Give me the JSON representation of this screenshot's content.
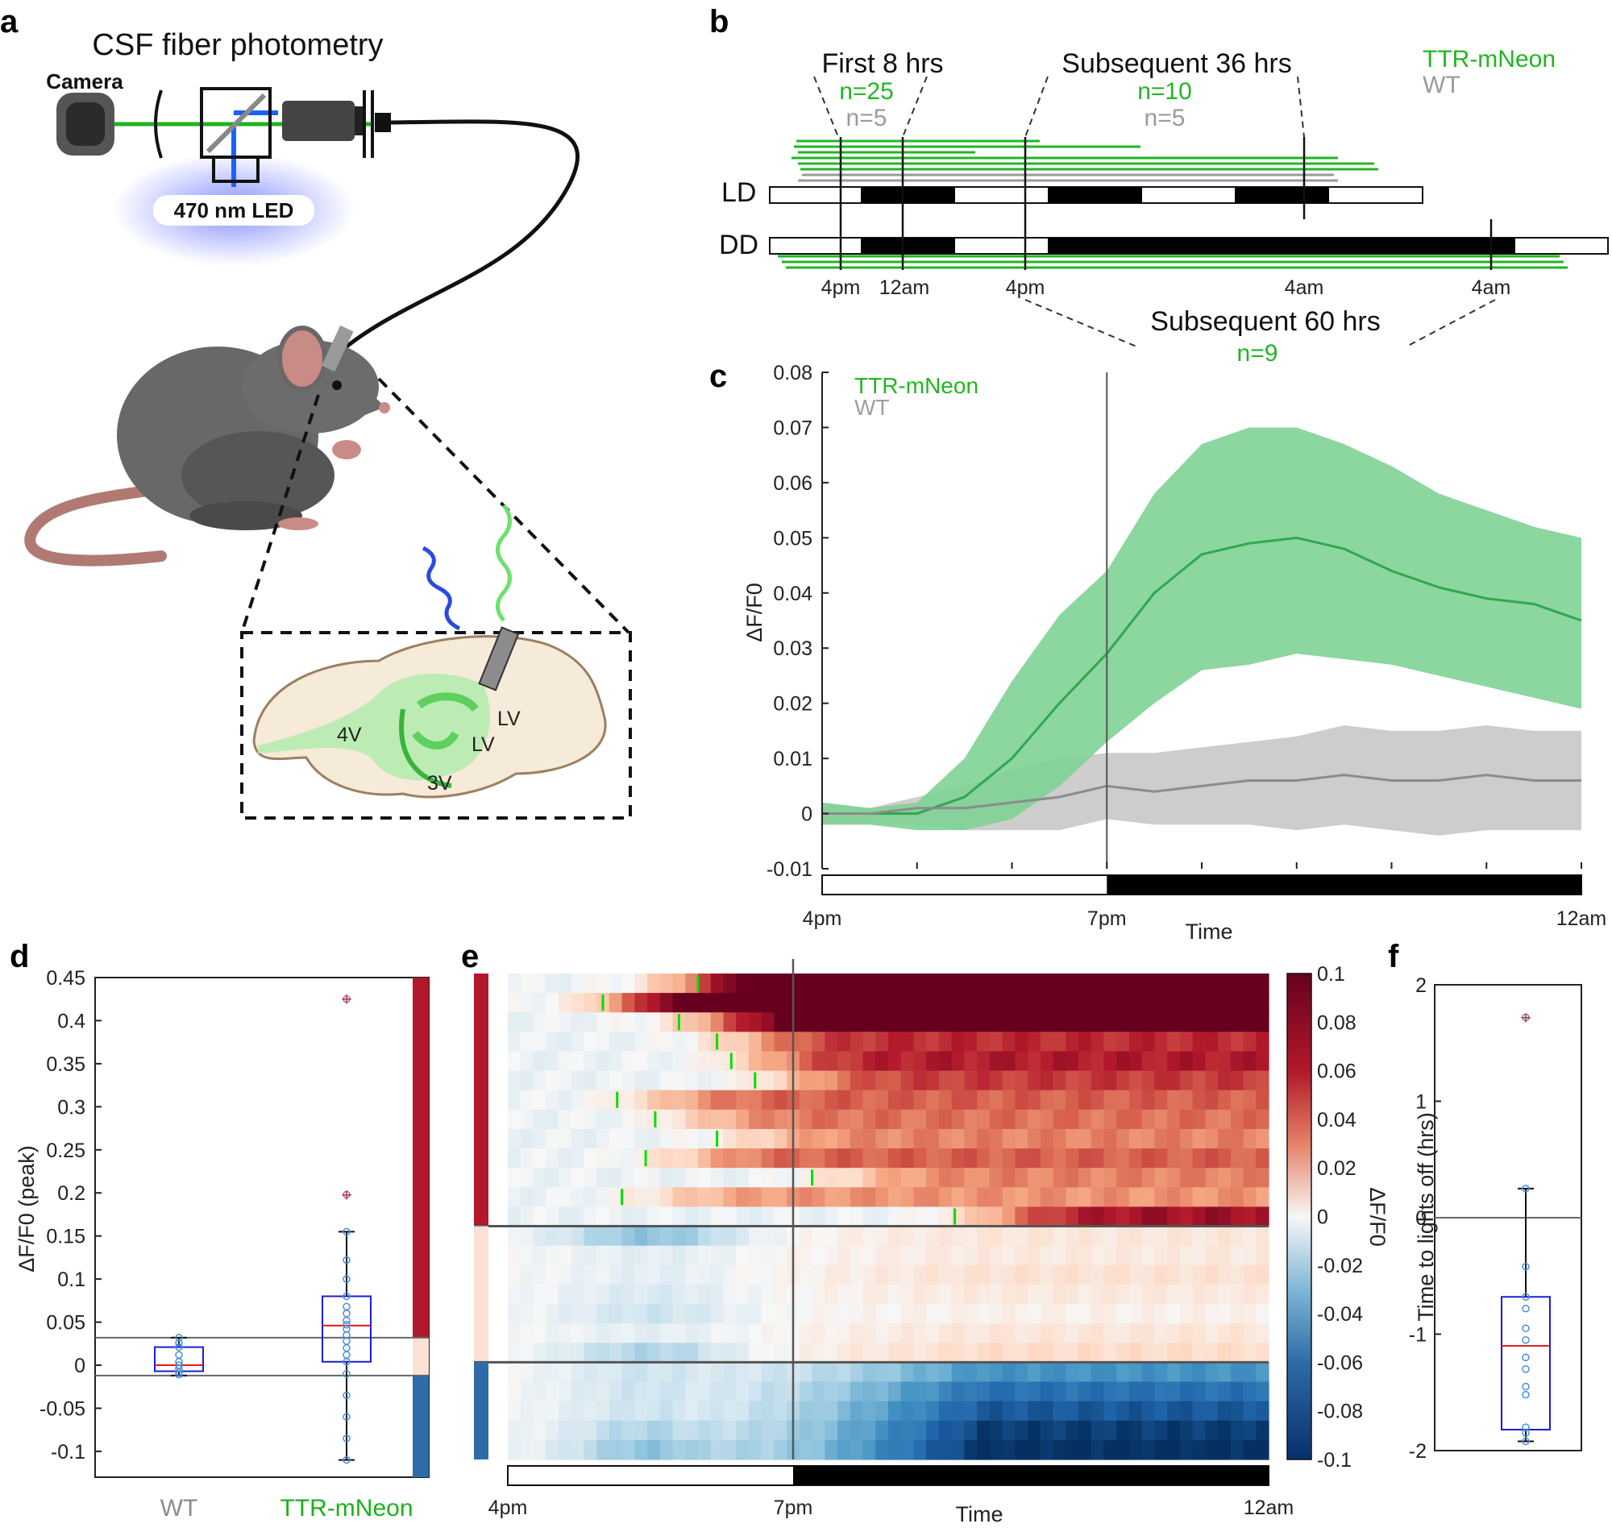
{
  "panels": {
    "a": "a",
    "b": "b",
    "c": "c",
    "d": "d",
    "e": "e",
    "f": "f"
  },
  "panel_a": {
    "title": "CSF fiber photometry",
    "camera_label": "Camera",
    "led_label": "470 nm LED",
    "ventricles": [
      "LV",
      "LV",
      "4V",
      "3V"
    ]
  },
  "panel_b": {
    "first_label": "First 8 hrs",
    "first_n_ttr": "n=25",
    "first_n_wt": "n=5",
    "sub36_label": "Subsequent 36 hrs",
    "sub36_n_ttr": "n=10",
    "sub36_n_wt": "n=5",
    "sub60_label": "Subsequent 60 hrs",
    "sub60_n": "n=9",
    "legend_ttr": "TTR-mNeon",
    "legend_wt": "WT",
    "row_ld": "LD",
    "row_dd": "DD",
    "time_labels": [
      "4pm",
      "12am",
      "4pm",
      "4am",
      "4am"
    ]
  },
  "chart_data": [
    {
      "panel": "c",
      "type": "line",
      "xlabel": "Time",
      "ylabel": "ΔF/F0",
      "x_tick_labels": [
        "4pm",
        "7pm",
        "12am"
      ],
      "x_hours": [
        0,
        8
      ],
      "lights_off_hour": 3,
      "ylim": [
        -0.01,
        0.08
      ],
      "y_ticks": [
        -0.01,
        0,
        0.01,
        0.02,
        0.03,
        0.04,
        0.05,
        0.06,
        0.07,
        0.08
      ],
      "x": [
        0,
        0.5,
        1,
        1.5,
        2,
        2.5,
        3,
        3.5,
        4,
        4.5,
        5,
        5.5,
        6,
        6.5,
        7,
        7.5,
        8
      ],
      "series": [
        {
          "name": "TTR-mNeon",
          "color": "#2fa84f",
          "band_color": "#80d195",
          "mean": [
            0.0,
            0.0,
            0.0,
            0.003,
            0.01,
            0.02,
            0.029,
            0.04,
            0.047,
            0.049,
            0.05,
            0.048,
            0.044,
            0.041,
            0.039,
            0.038,
            0.035
          ],
          "upper": [
            0.002,
            0.001,
            0.002,
            0.01,
            0.024,
            0.036,
            0.044,
            0.058,
            0.067,
            0.07,
            0.07,
            0.067,
            0.063,
            0.058,
            0.055,
            0.052,
            0.05
          ],
          "lower": [
            -0.002,
            -0.002,
            -0.003,
            -0.003,
            -0.001,
            0.005,
            0.013,
            0.02,
            0.026,
            0.027,
            0.029,
            0.028,
            0.027,
            0.025,
            0.023,
            0.021,
            0.019
          ]
        },
        {
          "name": "WT",
          "color": "#8c8c8c",
          "band_color": "#c8c8c8",
          "mean": [
            0.0,
            0.0,
            0.001,
            0.001,
            0.002,
            0.003,
            0.005,
            0.004,
            0.005,
            0.006,
            0.006,
            0.007,
            0.006,
            0.006,
            0.007,
            0.006,
            0.006
          ],
          "upper": [
            0.002,
            0.001,
            0.003,
            0.005,
            0.008,
            0.01,
            0.011,
            0.011,
            0.012,
            0.013,
            0.014,
            0.016,
            0.015,
            0.015,
            0.016,
            0.015,
            0.015
          ],
          "lower": [
            -0.002,
            -0.002,
            -0.002,
            -0.003,
            -0.003,
            -0.003,
            -0.001,
            -0.002,
            -0.002,
            -0.002,
            -0.003,
            -0.002,
            -0.003,
            -0.004,
            -0.003,
            -0.003,
            -0.003
          ]
        }
      ]
    },
    {
      "panel": "d",
      "type": "scatter",
      "ylabel": "ΔF/F0 (peak)",
      "categories": [
        "WT",
        "TTR-mNeon"
      ],
      "ylim": [
        -0.13,
        0.45
      ],
      "y_ticks": [
        -0.1,
        -0.05,
        0,
        0.05,
        0.1,
        0.15,
        0.2,
        0.25,
        0.3,
        0.35,
        0.4,
        0.45
      ],
      "threshold_lines": [
        0.032,
        -0.012
      ],
      "boxes": [
        {
          "name": "WT",
          "color": "#8c8c8c",
          "q1": -0.007,
          "median": 0.0,
          "q3": 0.021,
          "whisker_low": -0.012,
          "whisker_high": 0.032,
          "points": [
            -0.011,
            -0.008,
            -0.004,
            0.0,
            0.004,
            0.012,
            0.021,
            0.026,
            0.032
          ]
        },
        {
          "name": "TTR-mNeon",
          "color": "#1cb01c",
          "q1": 0.004,
          "median": 0.046,
          "q3": 0.08,
          "whisker_low": -0.11,
          "whisker_high": 0.155,
          "outliers": [
            0.198,
            0.425
          ],
          "points": [
            -0.11,
            -0.085,
            -0.06,
            -0.035,
            -0.01,
            0.004,
            0.012,
            0.02,
            0.028,
            0.035,
            0.042,
            0.047,
            0.052,
            0.06,
            0.068,
            0.08,
            0.1,
            0.122,
            0.155,
            0.198,
            0.425
          ]
        }
      ],
      "class_bar": [
        "#b2182b",
        "#fbe1d4",
        "#2d6ca8"
      ]
    },
    {
      "panel": "e",
      "type": "heatmap",
      "xlabel": "Time",
      "colorbar_label": "ΔF/F0",
      "x_tick_labels": [
        "4pm",
        "7pm",
        "12am"
      ],
      "colorbar_range": [
        -0.1,
        0.1
      ],
      "colorbar_ticks": [
        "0.1",
        "0.08",
        "0.06",
        "0.04",
        "0.02",
        "0",
        "-0.02",
        "-0.04",
        "-0.06",
        "-0.08",
        "-0.1"
      ],
      "group_sizes": [
        13,
        7,
        5
      ],
      "rise_hours": [
        2.0,
        1.0,
        1.8,
        2.2,
        2.35,
        2.6,
        1.15,
        1.55,
        2.2,
        1.45,
        3.2,
        1.2,
        4.7
      ],
      "rows": [
        {
          "onset": 1.5,
          "peak": 0.14
        },
        {
          "onset": 0.8,
          "peak": 0.14
        },
        {
          "onset": 1.7,
          "peak": 0.12
        },
        {
          "onset": 2.0,
          "peak": 0.075
        },
        {
          "onset": 2.2,
          "peak": 0.08
        },
        {
          "onset": 2.5,
          "peak": 0.07
        },
        {
          "onset": 1.1,
          "peak": 0.06
        },
        {
          "onset": 1.5,
          "peak": 0.055
        },
        {
          "onset": 2.1,
          "peak": 0.05
        },
        {
          "onset": 1.4,
          "peak": 0.06
        },
        {
          "onset": 3.1,
          "peak": 0.05
        },
        {
          "onset": 1.2,
          "peak": 0.045
        },
        {
          "onset": 4.6,
          "peak": 0.085
        },
        {
          "onset": 0,
          "peak": 0.012,
          "dip": -0.04
        },
        {
          "onset": 0,
          "peak": 0.01,
          "dip": -0.01
        },
        {
          "onset": 0,
          "peak": 0.015,
          "dip": -0.01
        },
        {
          "onset": 0,
          "peak": 0.01,
          "dip": -0.015
        },
        {
          "onset": 0,
          "peak": 0.005,
          "dip": -0.02
        },
        {
          "onset": 0,
          "peak": 0.012,
          "dip": -0.01
        },
        {
          "onset": 0,
          "peak": 0.018,
          "dip": -0.03
        },
        {
          "onset": 0,
          "peak": -0.06,
          "dip": -0.02
        },
        {
          "onset": 0,
          "peak": -0.075,
          "dip": -0.02
        },
        {
          "onset": 0,
          "peak": -0.085,
          "dip": -0.02
        },
        {
          "onset": 0,
          "peak": -0.095,
          "dip": -0.03
        },
        {
          "onset": 0,
          "peak": -0.1,
          "dip": -0.04
        }
      ]
    },
    {
      "panel": "f",
      "type": "scatter",
      "ylabel": "Time to lights off (hrs)",
      "ylim": [
        -2,
        2
      ],
      "y_ticks": [
        -2,
        -1,
        0,
        1,
        2
      ],
      "box": {
        "q1": -1.82,
        "median": -1.1,
        "q3": -0.68,
        "whisker_low": -1.92,
        "whisker_high": 0.25,
        "outlier": 1.72
      },
      "points": [
        -1.92,
        -1.85,
        -1.8,
        -1.52,
        -1.45,
        -1.3,
        -1.2,
        -1.05,
        -0.95,
        -0.78,
        -0.68,
        -0.42,
        0.25,
        1.72
      ]
    }
  ]
}
